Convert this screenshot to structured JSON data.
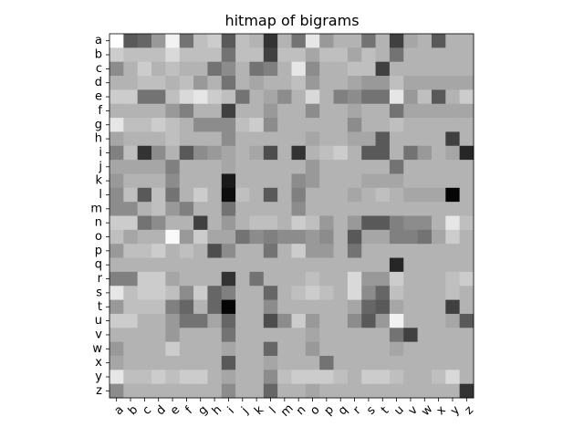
{
  "chart_data": {
    "type": "heatmap",
    "title": "hitmap of bigrams",
    "xlabel": "",
    "ylabel": "",
    "colormap": "gray_r",
    "value_range": [
      0,
      1
    ],
    "x_categories": [
      "a",
      "b",
      "c",
      "d",
      "e",
      "f",
      "g",
      "h",
      "i",
      "j",
      "k",
      "l",
      "m",
      "n",
      "o",
      "p",
      "q",
      "r",
      "s",
      "t",
      "u",
      "v",
      "w",
      "x",
      "y",
      "z"
    ],
    "y_categories": [
      "a",
      "b",
      "c",
      "d",
      "e",
      "f",
      "g",
      "h",
      "i",
      "j",
      "k",
      "l",
      "m",
      "n",
      "o",
      "p",
      "q",
      "r",
      "s",
      "t",
      "u",
      "v",
      "w",
      "x",
      "y",
      "z"
    ],
    "x_tick_rotation": -45,
    "values": [
      [
        0.0,
        0.65,
        0.6,
        0.4,
        0.05,
        0.55,
        0.25,
        0.2,
        0.65,
        0.25,
        0.3,
        0.8,
        0.3,
        0.55,
        0.1,
        0.4,
        0.3,
        0.3,
        0.55,
        0.3,
        0.75,
        0.35,
        0.3,
        0.65,
        0.3,
        0.3
      ],
      [
        0.2,
        0.25,
        0.25,
        0.25,
        0.15,
        0.25,
        0.25,
        0.25,
        0.55,
        0.25,
        0.25,
        0.75,
        0.25,
        0.25,
        0.35,
        0.25,
        0.25,
        0.35,
        0.25,
        0.3,
        0.55,
        0.3,
        0.3,
        0.3,
        0.3,
        0.3
      ],
      [
        0.45,
        0.3,
        0.2,
        0.3,
        0.25,
        0.3,
        0.3,
        0.55,
        0.45,
        0.3,
        0.55,
        0.5,
        0.3,
        0.1,
        0.45,
        0.3,
        0.3,
        0.25,
        0.25,
        0.75,
        0.3,
        0.3,
        0.3,
        0.3,
        0.3,
        0.3
      ],
      [
        0.3,
        0.3,
        0.25,
        0.25,
        0.3,
        0.25,
        0.4,
        0.3,
        0.55,
        0.3,
        0.35,
        0.3,
        0.3,
        0.25,
        0.4,
        0.3,
        0.3,
        0.35,
        0.4,
        0.4,
        0.25,
        0.35,
        0.35,
        0.35,
        0.35,
        0.35
      ],
      [
        0.2,
        0.2,
        0.55,
        0.55,
        0.25,
        0.15,
        0.1,
        0.2,
        0.25,
        0.55,
        0.3,
        0.35,
        0.45,
        0.3,
        0.15,
        0.3,
        0.5,
        0.45,
        0.55,
        0.55,
        0.1,
        0.4,
        0.25,
        0.65,
        0.3,
        0.2
      ],
      [
        0.3,
        0.3,
        0.3,
        0.3,
        0.4,
        0.5,
        0.3,
        0.3,
        0.75,
        0.3,
        0.3,
        0.4,
        0.3,
        0.3,
        0.45,
        0.3,
        0.3,
        0.35,
        0.3,
        0.3,
        0.55,
        0.35,
        0.35,
        0.35,
        0.35,
        0.35
      ],
      [
        0.1,
        0.25,
        0.25,
        0.2,
        0.25,
        0.3,
        0.45,
        0.45,
        0.45,
        0.25,
        0.2,
        0.45,
        0.3,
        0.3,
        0.3,
        0.3,
        0.3,
        0.45,
        0.3,
        0.3,
        0.25,
        0.3,
        0.3,
        0.3,
        0.3,
        0.3
      ],
      [
        0.35,
        0.3,
        0.3,
        0.3,
        0.25,
        0.3,
        0.3,
        0.3,
        0.45,
        0.3,
        0.3,
        0.3,
        0.3,
        0.3,
        0.35,
        0.3,
        0.3,
        0.35,
        0.35,
        0.65,
        0.3,
        0.3,
        0.3,
        0.3,
        0.75,
        0.3
      ],
      [
        0.5,
        0.25,
        0.8,
        0.45,
        0.3,
        0.65,
        0.45,
        0.4,
        0.35,
        0.3,
        0.35,
        0.7,
        0.3,
        0.8,
        0.3,
        0.25,
        0.2,
        0.3,
        0.65,
        0.65,
        0.3,
        0.55,
        0.4,
        0.3,
        0.35,
        0.85
      ],
      [
        0.35,
        0.35,
        0.35,
        0.35,
        0.5,
        0.3,
        0.3,
        0.3,
        0.35,
        0.3,
        0.3,
        0.3,
        0.3,
        0.3,
        0.4,
        0.3,
        0.3,
        0.3,
        0.3,
        0.3,
        0.55,
        0.3,
        0.3,
        0.3,
        0.3,
        0.3
      ],
      [
        0.4,
        0.3,
        0.3,
        0.3,
        0.45,
        0.3,
        0.3,
        0.3,
        0.9,
        0.3,
        0.3,
        0.3,
        0.3,
        0.45,
        0.4,
        0.3,
        0.3,
        0.3,
        0.35,
        0.35,
        0.35,
        0.3,
        0.3,
        0.3,
        0.3,
        0.3
      ],
      [
        0.45,
        0.25,
        0.65,
        0.25,
        0.55,
        0.3,
        0.2,
        0.3,
        0.95,
        0.25,
        0.3,
        0.65,
        0.3,
        0.5,
        0.3,
        0.3,
        0.3,
        0.35,
        0.3,
        0.25,
        0.3,
        0.35,
        0.35,
        0.35,
        0.98,
        0.3
      ],
      [
        0.45,
        0.45,
        0.3,
        0.25,
        0.4,
        0.5,
        0.3,
        0.3,
        0.55,
        0.3,
        0.3,
        0.3,
        0.3,
        0.45,
        0.3,
        0.3,
        0.3,
        0.3,
        0.3,
        0.3,
        0.3,
        0.3,
        0.3,
        0.3,
        0.3,
        0.3
      ],
      [
        0.2,
        0.2,
        0.55,
        0.45,
        0.3,
        0.3,
        0.75,
        0.3,
        0.4,
        0.3,
        0.25,
        0.25,
        0.3,
        0.2,
        0.25,
        0.4,
        0.3,
        0.4,
        0.65,
        0.65,
        0.5,
        0.45,
        0.45,
        0.3,
        0.1,
        0.25
      ],
      [
        0.25,
        0.35,
        0.3,
        0.3,
        0.02,
        0.4,
        0.2,
        0.35,
        0.35,
        0.55,
        0.45,
        0.5,
        0.45,
        0.45,
        0.4,
        0.45,
        0.3,
        0.65,
        0.35,
        0.35,
        0.5,
        0.5,
        0.55,
        0.35,
        0.2,
        0.3
      ],
      [
        0.4,
        0.25,
        0.25,
        0.2,
        0.3,
        0.25,
        0.3,
        0.7,
        0.45,
        0.3,
        0.3,
        0.55,
        0.3,
        0.2,
        0.4,
        0.4,
        0.3,
        0.55,
        0.3,
        0.3,
        0.3,
        0.3,
        0.3,
        0.3,
        0.3,
        0.3
      ],
      [
        0.3,
        0.3,
        0.3,
        0.3,
        0.3,
        0.3,
        0.3,
        0.3,
        0.3,
        0.3,
        0.3,
        0.3,
        0.3,
        0.3,
        0.3,
        0.3,
        0.3,
        0.3,
        0.3,
        0.3,
        0.85,
        0.3,
        0.3,
        0.3,
        0.3,
        0.3
      ],
      [
        0.5,
        0.5,
        0.2,
        0.2,
        0.35,
        0.3,
        0.3,
        0.3,
        0.8,
        0.3,
        0.55,
        0.3,
        0.3,
        0.3,
        0.25,
        0.3,
        0.3,
        0.15,
        0.4,
        0.4,
        0.2,
        0.3,
        0.3,
        0.3,
        0.25,
        0.2
      ],
      [
        0.1,
        0.25,
        0.2,
        0.2,
        0.25,
        0.45,
        0.2,
        0.6,
        0.5,
        0.3,
        0.3,
        0.6,
        0.3,
        0.25,
        0.2,
        0.25,
        0.3,
        0.15,
        0.45,
        0.6,
        0.25,
        0.3,
        0.3,
        0.3,
        0.25,
        0.3
      ],
      [
        0.4,
        0.25,
        0.25,
        0.25,
        0.5,
        0.6,
        0.3,
        0.6,
        0.98,
        0.3,
        0.3,
        0.45,
        0.3,
        0.3,
        0.3,
        0.3,
        0.3,
        0.35,
        0.6,
        0.65,
        0.35,
        0.3,
        0.3,
        0.3,
        0.75,
        0.3
      ],
      [
        0.2,
        0.2,
        0.3,
        0.3,
        0.4,
        0.55,
        0.55,
        0.35,
        0.6,
        0.3,
        0.3,
        0.7,
        0.45,
        0.2,
        0.4,
        0.3,
        0.3,
        0.45,
        0.65,
        0.4,
        0.05,
        0.3,
        0.3,
        0.3,
        0.35,
        0.65
      ],
      [
        0.3,
        0.3,
        0.3,
        0.3,
        0.4,
        0.3,
        0.3,
        0.3,
        0.55,
        0.3,
        0.3,
        0.3,
        0.3,
        0.3,
        0.35,
        0.3,
        0.3,
        0.3,
        0.3,
        0.3,
        0.55,
        0.75,
        0.3,
        0.3,
        0.3,
        0.3
      ],
      [
        0.4,
        0.3,
        0.3,
        0.3,
        0.2,
        0.3,
        0.3,
        0.3,
        0.35,
        0.3,
        0.3,
        0.6,
        0.3,
        0.3,
        0.4,
        0.3,
        0.3,
        0.3,
        0.3,
        0.3,
        0.35,
        0.3,
        0.3,
        0.3,
        0.3,
        0.3
      ],
      [
        0.35,
        0.3,
        0.3,
        0.3,
        0.3,
        0.3,
        0.3,
        0.3,
        0.65,
        0.3,
        0.3,
        0.35,
        0.3,
        0.3,
        0.3,
        0.55,
        0.3,
        0.3,
        0.3,
        0.3,
        0.3,
        0.3,
        0.3,
        0.3,
        0.3,
        0.3
      ],
      [
        0.1,
        0.25,
        0.25,
        0.2,
        0.25,
        0.2,
        0.2,
        0.3,
        0.35,
        0.3,
        0.3,
        0.45,
        0.25,
        0.2,
        0.2,
        0.2,
        0.25,
        0.3,
        0.2,
        0.2,
        0.25,
        0.3,
        0.3,
        0.25,
        0.15,
        0.3
      ],
      [
        0.45,
        0.3,
        0.3,
        0.3,
        0.3,
        0.3,
        0.3,
        0.3,
        0.45,
        0.3,
        0.3,
        0.6,
        0.3,
        0.3,
        0.35,
        0.3,
        0.3,
        0.3,
        0.3,
        0.3,
        0.3,
        0.3,
        0.3,
        0.3,
        0.3,
        0.8
      ]
    ]
  }
}
